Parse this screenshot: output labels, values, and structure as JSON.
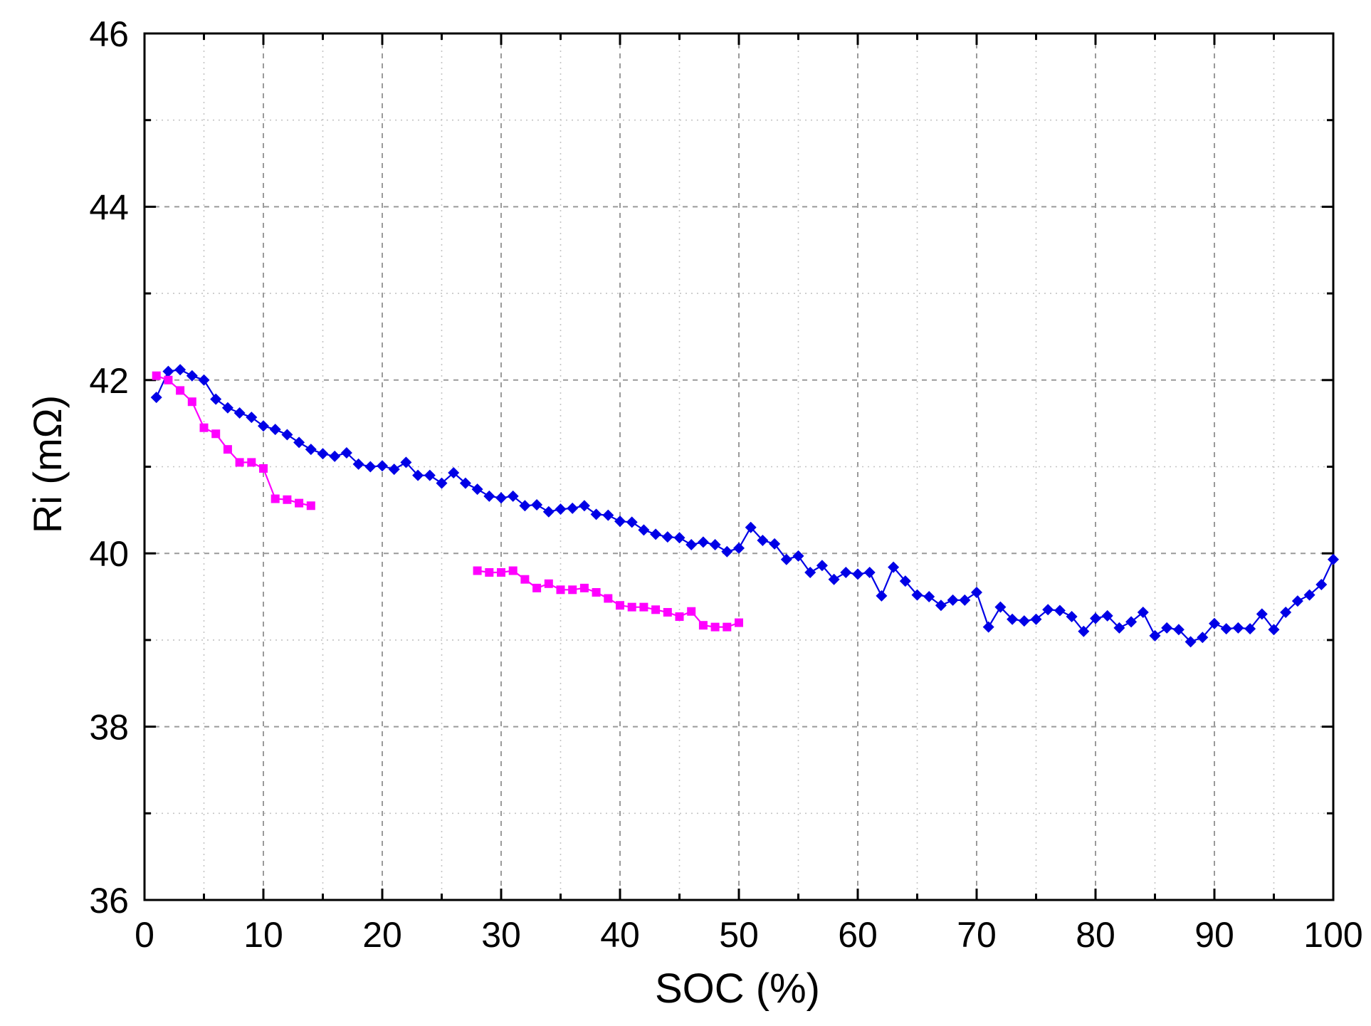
{
  "chart_data": {
    "type": "line",
    "title": "",
    "xlabel": "SOC (%)",
    "ylabel": "Ri (mΩ)",
    "xlim": [
      0,
      100
    ],
    "ylim": [
      36,
      46
    ],
    "xticks": [
      0,
      10,
      20,
      30,
      40,
      50,
      60,
      70,
      80,
      90,
      100
    ],
    "yticks": [
      36,
      38,
      40,
      42,
      44,
      46
    ],
    "xtick_labels": [
      "0",
      "10",
      "20",
      "30",
      "40",
      "50",
      "60",
      "70",
      "80",
      "90",
      "100"
    ],
    "ytick_labels": [
      "36",
      "38",
      "40",
      "42",
      "44",
      "46"
    ],
    "grid": true,
    "legend": "none",
    "series": [
      {
        "color": "#0000e6",
        "marker": "diamond",
        "points": [
          [
            1,
            41.8
          ],
          [
            2,
            42.1
          ],
          [
            3,
            42.12
          ],
          [
            4,
            42.05
          ],
          [
            5,
            42.0
          ],
          [
            6,
            41.78
          ],
          [
            7,
            41.68
          ],
          [
            8,
            41.62
          ],
          [
            9,
            41.57
          ],
          [
            10,
            41.47
          ],
          [
            11,
            41.43
          ],
          [
            12,
            41.37
          ],
          [
            13,
            41.28
          ],
          [
            14,
            41.2
          ],
          [
            15,
            41.15
          ],
          [
            16,
            41.12
          ],
          [
            17,
            41.16
          ],
          [
            18,
            41.03
          ],
          [
            19,
            41.0
          ],
          [
            20,
            41.01
          ],
          [
            21,
            40.97
          ],
          [
            22,
            41.05
          ],
          [
            23,
            40.9
          ],
          [
            24,
            40.9
          ],
          [
            25,
            40.81
          ],
          [
            26,
            40.93
          ],
          [
            27,
            40.81
          ],
          [
            28,
            40.74
          ],
          [
            29,
            40.66
          ],
          [
            30,
            40.64
          ],
          [
            31,
            40.66
          ],
          [
            32,
            40.55
          ],
          [
            33,
            40.56
          ],
          [
            34,
            40.48
          ],
          [
            35,
            40.51
          ],
          [
            36,
            40.52
          ],
          [
            37,
            40.55
          ],
          [
            38,
            40.45
          ],
          [
            39,
            40.44
          ],
          [
            40,
            40.37
          ],
          [
            41,
            40.36
          ],
          [
            42,
            40.27
          ],
          [
            43,
            40.22
          ],
          [
            44,
            40.19
          ],
          [
            45,
            40.18
          ],
          [
            46,
            40.1
          ],
          [
            47,
            40.13
          ],
          [
            48,
            40.1
          ],
          [
            49,
            40.02
          ],
          [
            50,
            40.06
          ],
          [
            51,
            40.3
          ],
          [
            52,
            40.15
          ],
          [
            53,
            40.11
          ],
          [
            54,
            39.93
          ],
          [
            55,
            39.97
          ],
          [
            56,
            39.78
          ],
          [
            57,
            39.86
          ],
          [
            58,
            39.7
          ],
          [
            59,
            39.78
          ],
          [
            60,
            39.76
          ],
          [
            61,
            39.78
          ],
          [
            62,
            39.51
          ],
          [
            63,
            39.84
          ],
          [
            64,
            39.68
          ],
          [
            65,
            39.52
          ],
          [
            66,
            39.5
          ],
          [
            67,
            39.4
          ],
          [
            68,
            39.46
          ],
          [
            69,
            39.46
          ],
          [
            70,
            39.55
          ],
          [
            71,
            39.15
          ],
          [
            72,
            39.38
          ],
          [
            73,
            39.24
          ],
          [
            74,
            39.22
          ],
          [
            75,
            39.24
          ],
          [
            76,
            39.35
          ],
          [
            77,
            39.34
          ],
          [
            78,
            39.27
          ],
          [
            79,
            39.1
          ],
          [
            80,
            39.25
          ],
          [
            81,
            39.28
          ],
          [
            82,
            39.14
          ],
          [
            83,
            39.21
          ],
          [
            84,
            39.32
          ],
          [
            85,
            39.05
          ],
          [
            86,
            39.14
          ],
          [
            87,
            39.12
          ],
          [
            88,
            38.98
          ],
          [
            89,
            39.03
          ],
          [
            90,
            39.19
          ],
          [
            91,
            39.13
          ],
          [
            92,
            39.14
          ],
          [
            93,
            39.13
          ],
          [
            94,
            39.3
          ],
          [
            95,
            39.12
          ],
          [
            96,
            39.32
          ],
          [
            97,
            39.45
          ],
          [
            98,
            39.52
          ],
          [
            99,
            39.64
          ],
          [
            100,
            39.93
          ]
        ]
      },
      {
        "color": "#ff00ff",
        "marker": "square",
        "segments": [
          [
            [
              1,
              42.05
            ],
            [
              2,
              42.0
            ],
            [
              3,
              41.88
            ],
            [
              4,
              41.75
            ],
            [
              5,
              41.45
            ],
            [
              6,
              41.38
            ],
            [
              7,
              41.2
            ],
            [
              8,
              41.05
            ],
            [
              9,
              41.05
            ],
            [
              10,
              40.98
            ],
            [
              11,
              40.63
            ],
            [
              12,
              40.62
            ],
            [
              13,
              40.58
            ],
            [
              14,
              40.55
            ]
          ],
          [
            [
              28,
              39.8
            ],
            [
              29,
              39.78
            ],
            [
              30,
              39.78
            ],
            [
              31,
              39.8
            ],
            [
              32,
              39.7
            ],
            [
              33,
              39.6
            ],
            [
              34,
              39.65
            ],
            [
              35,
              39.58
            ],
            [
              36,
              39.58
            ],
            [
              37,
              39.6
            ],
            [
              38,
              39.55
            ],
            [
              39,
              39.48
            ],
            [
              40,
              39.4
            ],
            [
              41,
              39.38
            ],
            [
              42,
              39.38
            ],
            [
              43,
              39.35
            ],
            [
              44,
              39.32
            ],
            [
              45,
              39.27
            ],
            [
              46,
              39.33
            ],
            [
              47,
              39.17
            ],
            [
              48,
              39.15
            ],
            [
              49,
              39.15
            ],
            [
              50,
              39.2
            ]
          ]
        ]
      }
    ]
  }
}
